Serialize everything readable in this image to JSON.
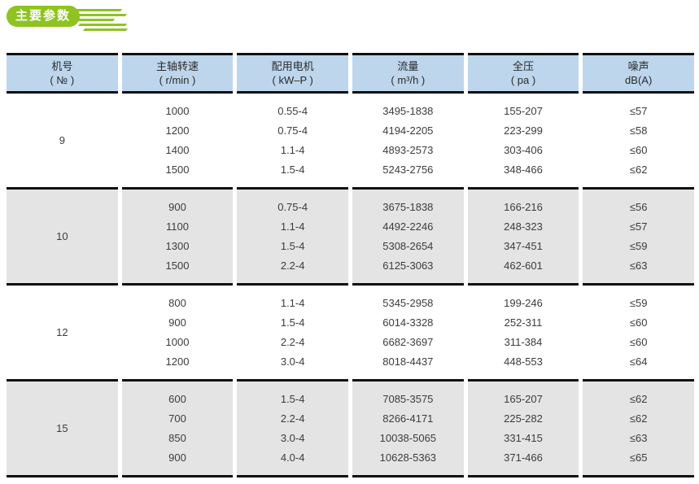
{
  "page": {
    "title_badge": "主要参数"
  },
  "colors": {
    "badge_green": "#8ec320",
    "header_blue": "#bdd6ec",
    "row_gray": "#e4e4e4",
    "border_black": "#101010",
    "text": "#3c3c3c"
  },
  "table": {
    "headers": [
      {
        "line1": "机号",
        "line2": "( № )"
      },
      {
        "line1": "主轴转速",
        "line2": "( r/min )"
      },
      {
        "line1": "配用电机",
        "line2": "( kW–P )"
      },
      {
        "line1": "流量",
        "line2": "( m³/h )"
      },
      {
        "line1": "全压",
        "line2": "( pa )"
      },
      {
        "line1": "噪声",
        "line2": "dB(A)"
      }
    ],
    "groups": [
      {
        "model": "9",
        "rows": [
          {
            "speed": "1000",
            "motor": "0.55-4",
            "flow": "3495-1838",
            "pressure": "155-207",
            "noise": "≤57"
          },
          {
            "speed": "1200",
            "motor": "0.75-4",
            "flow": "4194-2205",
            "pressure": "223-299",
            "noise": "≤58"
          },
          {
            "speed": "1400",
            "motor": "1.1-4",
            "flow": "4893-2573",
            "pressure": "303-406",
            "noise": "≤60"
          },
          {
            "speed": "1500",
            "motor": "1.5-4",
            "flow": "5243-2756",
            "pressure": "348-466",
            "noise": "≤62"
          }
        ]
      },
      {
        "model": "10",
        "rows": [
          {
            "speed": "900",
            "motor": "0.75-4",
            "flow": "3675-1838",
            "pressure": "166-216",
            "noise": "≤56"
          },
          {
            "speed": "1100",
            "motor": "1.1-4",
            "flow": "4492-2246",
            "pressure": "248-323",
            "noise": "≤57"
          },
          {
            "speed": "1300",
            "motor": "1.5-4",
            "flow": "5308-2654",
            "pressure": "347-451",
            "noise": "≤59"
          },
          {
            "speed": "1500",
            "motor": "2.2-4",
            "flow": "6125-3063",
            "pressure": "462-601",
            "noise": "≤63"
          }
        ]
      },
      {
        "model": "12",
        "rows": [
          {
            "speed": "800",
            "motor": "1.1-4",
            "flow": "5345-2958",
            "pressure": "199-246",
            "noise": "≤59"
          },
          {
            "speed": "900",
            "motor": "1.5-4",
            "flow": "6014-3328",
            "pressure": "252-311",
            "noise": "≤60"
          },
          {
            "speed": "1000",
            "motor": "2.2-4",
            "flow": "6682-3697",
            "pressure": "311-384",
            "noise": "≤60"
          },
          {
            "speed": "1200",
            "motor": "3.0-4",
            "flow": "8018-4437",
            "pressure": "448-553",
            "noise": "≤64"
          }
        ]
      },
      {
        "model": "15",
        "rows": [
          {
            "speed": "600",
            "motor": "1.5-4",
            "flow": "7085-3575",
            "pressure": "165-207",
            "noise": "≤62"
          },
          {
            "speed": "700",
            "motor": "2.2-4",
            "flow": "8266-4171",
            "pressure": "225-282",
            "noise": "≤62"
          },
          {
            "speed": "850",
            "motor": "3.0-4",
            "flow": "10038-5065",
            "pressure": "331-415",
            "noise": "≤63"
          },
          {
            "speed": "900",
            "motor": "4.0-4",
            "flow": "10628-5363",
            "pressure": "371-466",
            "noise": "≤65"
          }
        ]
      }
    ]
  }
}
